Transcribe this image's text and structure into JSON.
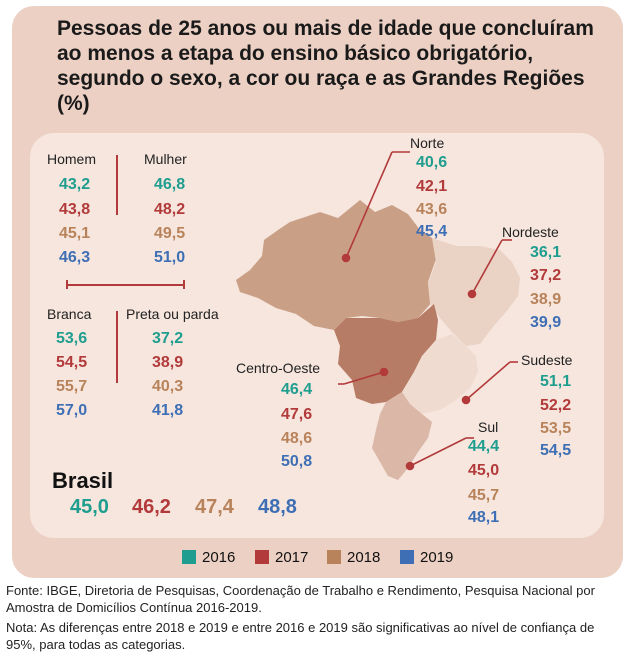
{
  "colors": {
    "y2016": "#1f9e8f",
    "y2017": "#b23a3a",
    "y2018": "#b8835a",
    "y2019": "#3e6fb5"
  },
  "chart_data": {
    "type": "table",
    "title": "Pessoas de 25 anos ou mais de idade que concluíram ao menos a etapa do ensino básico obrigatório, segundo o sexo, a cor ou raça e as Grandes Regiões (%)",
    "years": [
      "2016",
      "2017",
      "2018",
      "2019"
    ],
    "sexo": [
      {
        "name": "Homem",
        "values": [
          "43,2",
          "43,8",
          "45,1",
          "46,3"
        ]
      },
      {
        "name": "Mulher",
        "values": [
          "46,8",
          "48,2",
          "49,5",
          "51,0"
        ]
      }
    ],
    "cor": [
      {
        "name": "Branca",
        "values": [
          "53,6",
          "54,5",
          "55,7",
          "57,0"
        ]
      },
      {
        "name": "Preta ou parda",
        "values": [
          "37,2",
          "38,9",
          "40,3",
          "41,8"
        ]
      }
    ],
    "regioes": [
      {
        "name": "Norte",
        "values": [
          "40,6",
          "42,1",
          "43,6",
          "45,4"
        ]
      },
      {
        "name": "Nordeste",
        "values": [
          "36,1",
          "37,2",
          "38,9",
          "39,9"
        ]
      },
      {
        "name": "Centro-Oeste",
        "values": [
          "46,4",
          "47,6",
          "48,6",
          "50,8"
        ]
      },
      {
        "name": "Sudeste",
        "values": [
          "51,1",
          "52,2",
          "53,5",
          "54,5"
        ]
      },
      {
        "name": "Sul",
        "values": [
          "44,4",
          "45,0",
          "45,7",
          "48,1"
        ]
      }
    ],
    "brasil": {
      "name": "Brasil",
      "values": [
        "45,0",
        "46,2",
        "47,4",
        "48,8"
      ]
    }
  },
  "footer": {
    "fonte": "Fonte: IBGE, Diretoria de Pesquisas, Coordenação de Trabalho e Rendimento, Pesquisa Nacional por Amostra de Domicílios Contínua 2016-2019.",
    "nota": "Nota: As diferenças entre 2018 e 2019 e entre 2016 e 2019 são significativas ao nível de confiança de 95%, para todas as categorias."
  }
}
